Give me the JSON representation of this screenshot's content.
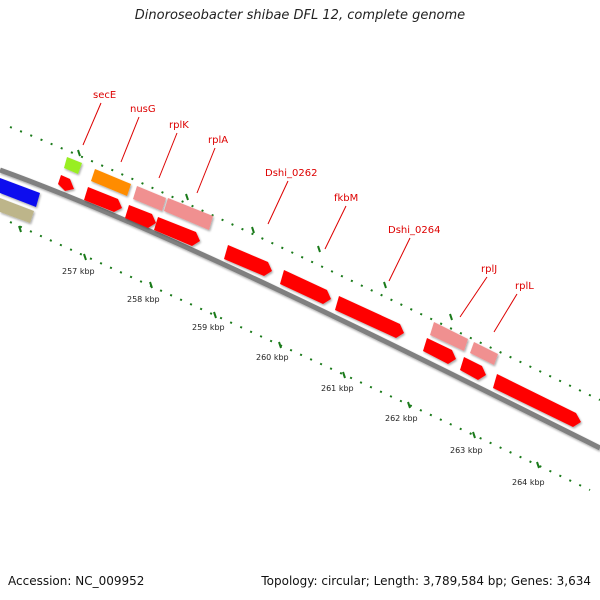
{
  "title": "Dinoroseobacter shibae DFL 12, complete genome",
  "accession": "Accession: NC_009952",
  "topology": "Topology: circular; Length: 3,789,584 bp; Genes: 3,634",
  "colors": {
    "backbone": "#808080",
    "cds": "#ff0000",
    "cds_light": "#f09090",
    "gene_orange": "#ff8c00",
    "gene_lime": "#99ee22",
    "gene_blue": "#1010ee",
    "gene_tan": "#bdb58a",
    "label": "#dd0000",
    "tick": "#1a7a1a"
  },
  "scale_labels": [
    "257 kbp",
    "258 kbp",
    "259 kbp",
    "260 kbp",
    "261 kbp",
    "262 kbp",
    "263 kbp",
    "264 kbp"
  ],
  "gene_labels": [
    "secE",
    "nusG",
    "rplK",
    "rplA",
    "Dshi_0262",
    "fkbM",
    "Dshi_0264",
    "rplJ",
    "rplL"
  ]
}
